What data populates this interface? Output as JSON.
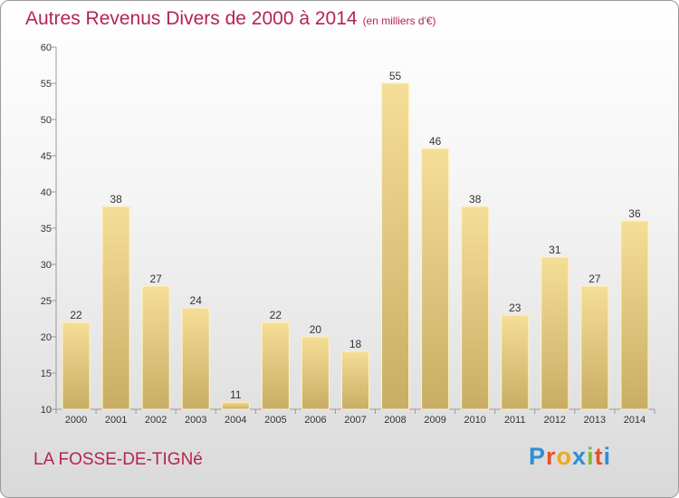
{
  "header": {
    "title": "Autres Revenus Divers de 2000 à 2014",
    "subtitle": "(en milliers d'€)"
  },
  "footer": {
    "commune": "LA FOSSE-DE-TIGNé",
    "logo_letters": [
      "P",
      "r",
      "o",
      "x",
      "i",
      "t",
      "i"
    ]
  },
  "colors": {
    "title": "#b5254e",
    "bar_top": "#f5de97",
    "bar_bottom": "#c8ad64",
    "logo": [
      "#2c8fd6",
      "#e8512a",
      "#f0a81c",
      "#2c8fd6",
      "#7dbb33",
      "#e8512a",
      "#2c8fd6"
    ]
  },
  "chart_data": {
    "type": "bar",
    "categories": [
      "2000",
      "2001",
      "2002",
      "2003",
      "2004",
      "2005",
      "2006",
      "2007",
      "2008",
      "2009",
      "2010",
      "2011",
      "2012",
      "2013",
      "2014"
    ],
    "values": [
      22,
      38,
      27,
      24,
      11,
      22,
      20,
      18,
      55,
      46,
      38,
      23,
      31,
      27,
      36
    ],
    "ylim": [
      10,
      60
    ],
    "yticks": [
      10,
      15,
      20,
      25,
      30,
      35,
      40,
      45,
      50,
      55,
      60
    ],
    "grid": false,
    "data_labels": true
  }
}
